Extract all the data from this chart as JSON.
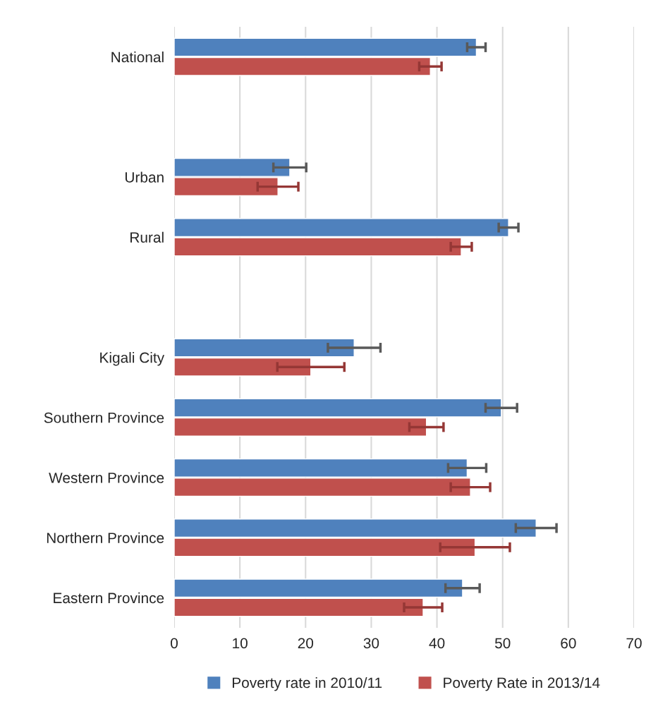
{
  "chart_data": {
    "type": "bar",
    "orientation": "horizontal",
    "categories": [
      "National",
      null,
      "Urban",
      "Rural",
      null,
      "Kigali City",
      "Southern Province",
      "Western Province",
      "Northern Province",
      "Eastern Province"
    ],
    "series": [
      {
        "name": "Poverty rate in 2010/11",
        "color": "#4f81bd",
        "values": [
          46.0,
          null,
          17.6,
          50.9,
          null,
          27.4,
          49.8,
          44.6,
          55.1,
          43.9
        ],
        "errors": [
          1.4,
          null,
          2.5,
          1.5,
          null,
          4.0,
          2.4,
          2.9,
          3.1,
          2.6
        ]
      },
      {
        "name": "Poverty Rate in 2013/14",
        "color": "#c0504d",
        "values": [
          39.0,
          null,
          15.8,
          43.7,
          null,
          20.8,
          38.4,
          45.1,
          45.8,
          37.9
        ],
        "errors": [
          1.7,
          null,
          3.1,
          1.6,
          null,
          5.1,
          2.6,
          3.0,
          5.3,
          2.9
        ]
      }
    ],
    "xlim": [
      0,
      70
    ],
    "xticks": [
      0,
      10,
      20,
      30,
      40,
      50,
      60,
      70
    ],
    "grid": "x",
    "legend": "bottom"
  }
}
